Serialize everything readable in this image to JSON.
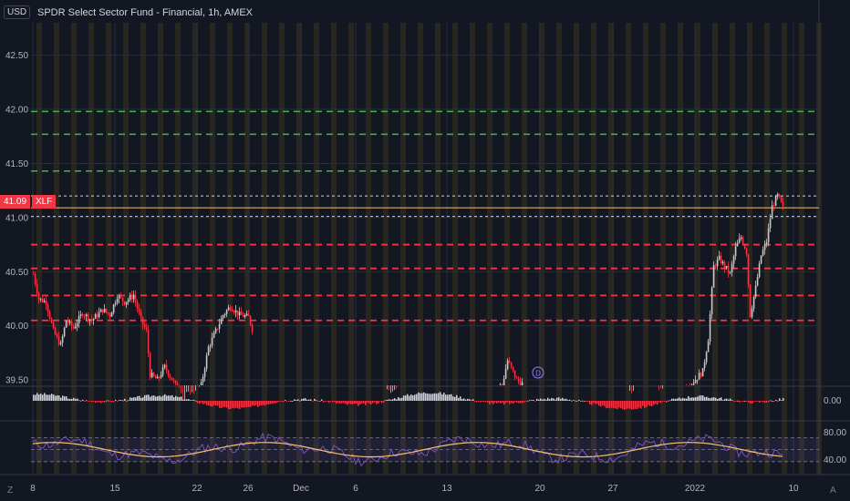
{
  "header": {
    "currency": "USD",
    "title": "SPDR Select Sector Fund - Financial, 1h, AMEX"
  },
  "price_tag": {
    "value": "41.09",
    "symbol": "XLF"
  },
  "corner": {
    "left": "Z",
    "right": "A"
  },
  "colors": {
    "background": "#131722",
    "grid": "#2a2e39",
    "up": "#c8c8c8",
    "down": "#f23645",
    "green_line": "#4caf50",
    "red_line": "#f23645",
    "price_line": "#f5c26b",
    "session_band": "#3a3320"
  },
  "chart_data": {
    "type": "candlestick",
    "price_axis": {
      "ticks": [
        39.5,
        40.0,
        40.5,
        41.0,
        41.5,
        42.0,
        42.5
      ],
      "range": [
        39.45,
        42.8
      ]
    },
    "x_axis": {
      "tick_labels": [
        "8",
        "15",
        "22",
        "26",
        "Dec",
        "6",
        "13",
        "20",
        "27",
        "2022",
        "10"
      ]
    },
    "current_price": 41.09,
    "levels_green": [
      41.98,
      41.77,
      41.43
    ],
    "levels_white_dotted": [
      41.2,
      41.01
    ],
    "levels_red": [
      40.75,
      40.53,
      40.28,
      40.05
    ],
    "event_marker": "D",
    "macd_panel": {
      "label": "0.00"
    },
    "rsi_panel": {
      "labels": [
        "80.00",
        "40.00"
      ]
    }
  }
}
